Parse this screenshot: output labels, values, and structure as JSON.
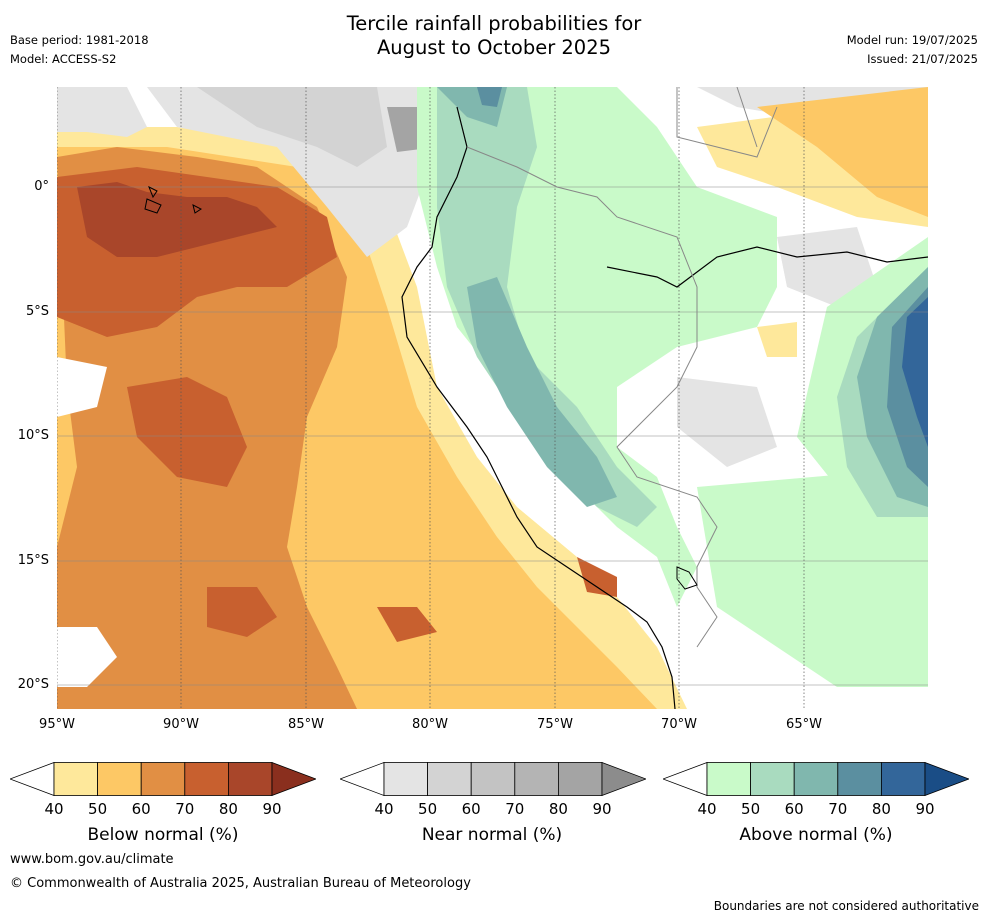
{
  "title_line1": "Tercile rainfall probabilities for",
  "title_line2": "August to October 2025",
  "base_period": "Base period: 1981-2018",
  "model": "Model: ACCESS-S2",
  "model_run": "Model run: 19/07/2025",
  "issued": "Issued: 21/07/2025",
  "map": {
    "lon_range": [
      -95,
      -60
    ],
    "lat_range": [
      -21,
      4
    ],
    "x_ticks": [
      "95°W",
      "90°W",
      "85°W",
      "80°W",
      "75°W",
      "70°W",
      "65°W"
    ],
    "y_ticks": [
      "0°",
      "5°S",
      "10°S",
      "15°S",
      "20°S"
    ]
  },
  "colorbars": [
    {
      "label": "Below normal (%)",
      "ticks": [
        "40",
        "50",
        "60",
        "70",
        "80",
        "90"
      ],
      "colors": [
        "#ffffff",
        "#fee89b",
        "#fdc865",
        "#e18f44",
        "#c8602f",
        "#a9462a",
        "#8a2f1e"
      ]
    },
    {
      "label": "Near normal (%)",
      "ticks": [
        "40",
        "50",
        "60",
        "70",
        "80",
        "90"
      ],
      "colors": [
        "#ffffff",
        "#e4e4e4",
        "#d3d3d3",
        "#c3c3c3",
        "#b4b4b4",
        "#a4a4a4",
        "#8c8c8c"
      ]
    },
    {
      "label": "Above normal (%)",
      "ticks": [
        "40",
        "50",
        "60",
        "70",
        "80",
        "90"
      ],
      "colors": [
        "#ffffff",
        "#c9fac9",
        "#a9dbbf",
        "#80b7ae",
        "#5b8fa0",
        "#33669a",
        "#1a4d86"
      ]
    }
  ],
  "footer_url": "www.bom.gov.au/climate",
  "footer_copyright": "© Commonwealth of Australia 2025, Australian Bureau of Meteorology",
  "disclaimer": "Boundaries are not considered authoritative"
}
